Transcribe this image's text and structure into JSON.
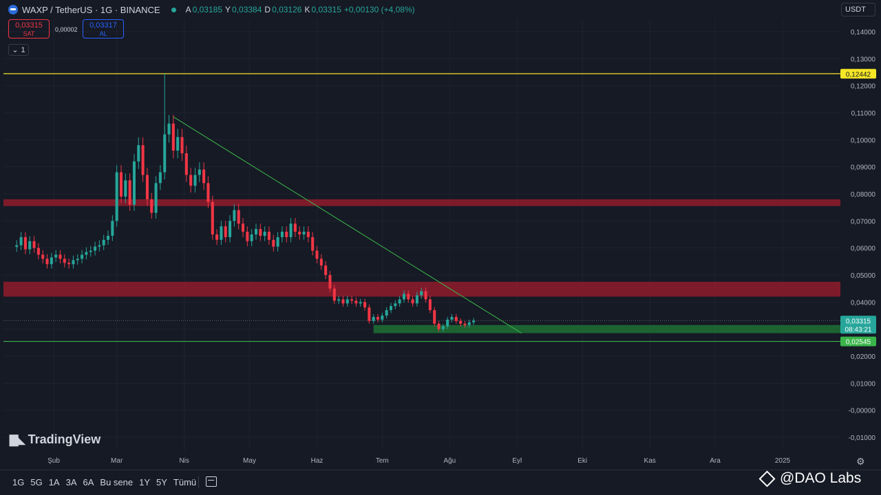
{
  "header": {
    "title": "WAXP / TetherUS · 1G · BINANCE",
    "ohlc": [
      {
        "k": "A",
        "v": "0,03185"
      },
      {
        "k": "Y",
        "v": "0,03384"
      },
      {
        "k": "D",
        "v": "0,03126"
      },
      {
        "k": "K",
        "v": "0,03315"
      },
      {
        "k": "",
        "v": "+0,00130 (+4,08%)"
      }
    ],
    "collapse_label": "1"
  },
  "trade": {
    "sell_price": "0,03315",
    "sell_label": "SAT",
    "spread": "0,00002",
    "buy_price": "0,03317",
    "buy_label": "AL"
  },
  "currency": "USDT",
  "logo": "TradingView",
  "watermark": "@DAO Labs",
  "ranges": [
    "1G",
    "5G",
    "1A",
    "3A",
    "6A",
    "Bu sene",
    "1Y",
    "5Y",
    "Tümü"
  ],
  "chart_data": {
    "type": "candlestick",
    "y_labels": [
      "0,14000",
      "0,13000",
      "0,12000",
      "0,11000",
      "0,10000",
      "0,09000",
      "0,08000",
      "0,07000",
      "0,06000",
      "0,05000",
      "0,04000",
      "0,03000",
      "0,02000",
      "0,01000",
      "-0,00000",
      "-0,01000"
    ],
    "ylim": [
      -0.01,
      0.14
    ],
    "x_labels": [
      "Şub",
      "Mar",
      "Nis",
      "May",
      "Haz",
      "Tem",
      "Ağu",
      "Eyl",
      "Eki",
      "Kas",
      "Ara",
      "2025"
    ],
    "price_tags": [
      {
        "value": 0.12442,
        "label": "0,12442",
        "color": "#f5e626"
      },
      {
        "value": 0.03315,
        "label": "0,03315",
        "sublabel": "08:43:21",
        "color": "#26a69a"
      },
      {
        "value": 0.02545,
        "label": "0,02545",
        "color": "#3ab54a"
      }
    ],
    "horizontal_lines": [
      {
        "value": 0.12442,
        "color": "#f5e626"
      },
      {
        "value": 0.02545,
        "color": "#3ab54a"
      }
    ],
    "zones": [
      {
        "low": 0.0755,
        "high": 0.078,
        "color": "#8a1c2c"
      },
      {
        "low": 0.042,
        "high": 0.0475,
        "color": "#8a1c2c"
      },
      {
        "low": 0.0285,
        "high": 0.0315,
        "color": "#1e6b34"
      }
    ],
    "trendline": [
      {
        "date": "2024-03-27",
        "value": 0.1085
      },
      {
        "date": "2024-09-03",
        "value": 0.0285
      }
    ],
    "colors": {
      "up": "#26a69a",
      "down": "#f23645"
    },
    "candles": [
      {
        "date": "2024-01-15",
        "close": 0.061
      },
      {
        "date": "2024-01-17",
        "close": 0.064
      },
      {
        "date": "2024-01-19",
        "close": 0.0595
      },
      {
        "date": "2024-01-21",
        "close": 0.0625
      },
      {
        "date": "2024-01-23",
        "close": 0.06
      },
      {
        "date": "2024-01-25",
        "close": 0.0575
      },
      {
        "date": "2024-01-27",
        "close": 0.056
      },
      {
        "date": "2024-01-29",
        "close": 0.054
      },
      {
        "date": "2024-01-31",
        "close": 0.0565
      },
      {
        "date": "2024-02-02",
        "close": 0.0575
      },
      {
        "date": "2024-02-04",
        "close": 0.056
      },
      {
        "date": "2024-02-06",
        "close": 0.0545
      },
      {
        "date": "2024-02-08",
        "close": 0.054
      },
      {
        "date": "2024-02-10",
        "close": 0.0555
      },
      {
        "date": "2024-02-12",
        "close": 0.056
      },
      {
        "date": "2024-02-14",
        "close": 0.0575
      },
      {
        "date": "2024-02-16",
        "close": 0.0585
      },
      {
        "date": "2024-02-18",
        "close": 0.059
      },
      {
        "date": "2024-02-20",
        "close": 0.0605
      },
      {
        "date": "2024-02-22",
        "close": 0.061
      },
      {
        "date": "2024-02-24",
        "close": 0.063
      },
      {
        "date": "2024-02-26",
        "close": 0.0645
      },
      {
        "date": "2024-02-28",
        "close": 0.07
      },
      {
        "date": "2024-03-01",
        "close": 0.088
      },
      {
        "date": "2024-03-03",
        "close": 0.079
      },
      {
        "date": "2024-03-05",
        "close": 0.085
      },
      {
        "date": "2024-03-07",
        "close": 0.076
      },
      {
        "date": "2024-03-09",
        "close": 0.092
      },
      {
        "date": "2024-03-11",
        "close": 0.098
      },
      {
        "date": "2024-03-13",
        "close": 0.087
      },
      {
        "date": "2024-03-15",
        "close": 0.078
      },
      {
        "date": "2024-03-17",
        "close": 0.073
      },
      {
        "date": "2024-03-19",
        "close": 0.084
      },
      {
        "date": "2024-03-21",
        "close": 0.088
      },
      {
        "date": "2024-03-23",
        "close": 0.102
      },
      {
        "date": "2024-03-25",
        "close": 0.106
      },
      {
        "date": "2024-03-27",
        "close": 0.096
      },
      {
        "date": "2024-03-29",
        "close": 0.101
      },
      {
        "date": "2024-03-31",
        "close": 0.095
      },
      {
        "date": "2024-04-02",
        "close": 0.087
      },
      {
        "date": "2024-04-04",
        "close": 0.083
      },
      {
        "date": "2024-04-06",
        "close": 0.087
      },
      {
        "date": "2024-04-08",
        "close": 0.089
      },
      {
        "date": "2024-04-10",
        "close": 0.084
      },
      {
        "date": "2024-04-12",
        "close": 0.077
      },
      {
        "date": "2024-04-14",
        "close": 0.065
      },
      {
        "date": "2024-04-16",
        "close": 0.063
      },
      {
        "date": "2024-04-18",
        "close": 0.068
      },
      {
        "date": "2024-04-20",
        "close": 0.064
      },
      {
        "date": "2024-04-22",
        "close": 0.07
      },
      {
        "date": "2024-04-24",
        "close": 0.074
      },
      {
        "date": "2024-04-26",
        "close": 0.069
      },
      {
        "date": "2024-04-28",
        "close": 0.066
      },
      {
        "date": "2024-04-30",
        "close": 0.0625
      },
      {
        "date": "2024-05-02",
        "close": 0.065
      },
      {
        "date": "2024-05-04",
        "close": 0.067
      },
      {
        "date": "2024-05-06",
        "close": 0.0645
      },
      {
        "date": "2024-05-08",
        "close": 0.066
      },
      {
        "date": "2024-05-10",
        "close": 0.063
      },
      {
        "date": "2024-05-12",
        "close": 0.0605
      },
      {
        "date": "2024-05-14",
        "close": 0.064
      },
      {
        "date": "2024-05-16",
        "close": 0.066
      },
      {
        "date": "2024-05-18",
        "close": 0.064
      },
      {
        "date": "2024-05-20",
        "close": 0.069
      },
      {
        "date": "2024-05-22",
        "close": 0.066
      },
      {
        "date": "2024-05-24",
        "close": 0.065
      },
      {
        "date": "2024-05-26",
        "close": 0.066
      },
      {
        "date": "2024-05-28",
        "close": 0.064
      },
      {
        "date": "2024-05-30",
        "close": 0.059
      },
      {
        "date": "2024-06-01",
        "close": 0.056
      },
      {
        "date": "2024-06-03",
        "close": 0.0535
      },
      {
        "date": "2024-06-05",
        "close": 0.05
      },
      {
        "date": "2024-06-07",
        "close": 0.045
      },
      {
        "date": "2024-06-09",
        "close": 0.0405
      },
      {
        "date": "2024-06-11",
        "close": 0.041
      },
      {
        "date": "2024-06-13",
        "close": 0.0395
      },
      {
        "date": "2024-06-15",
        "close": 0.041
      },
      {
        "date": "2024-06-17",
        "close": 0.0405
      },
      {
        "date": "2024-06-19",
        "close": 0.0395
      },
      {
        "date": "2024-06-21",
        "close": 0.04
      },
      {
        "date": "2024-06-23",
        "close": 0.038
      },
      {
        "date": "2024-06-25",
        "close": 0.033
      },
      {
        "date": "2024-06-27",
        "close": 0.0345
      },
      {
        "date": "2024-06-29",
        "close": 0.0335
      },
      {
        "date": "2024-07-01",
        "close": 0.035
      },
      {
        "date": "2024-07-03",
        "close": 0.037
      },
      {
        "date": "2024-07-05",
        "close": 0.0385
      },
      {
        "date": "2024-07-07",
        "close": 0.0395
      },
      {
        "date": "2024-07-09",
        "close": 0.041
      },
      {
        "date": "2024-07-11",
        "close": 0.043
      },
      {
        "date": "2024-07-13",
        "close": 0.041
      },
      {
        "date": "2024-07-15",
        "close": 0.0395
      },
      {
        "date": "2024-07-17",
        "close": 0.0425
      },
      {
        "date": "2024-07-19",
        "close": 0.044
      },
      {
        "date": "2024-07-21",
        "close": 0.041
      },
      {
        "date": "2024-07-23",
        "close": 0.037
      },
      {
        "date": "2024-07-25",
        "close": 0.032
      },
      {
        "date": "2024-07-27",
        "close": 0.03
      },
      {
        "date": "2024-07-29",
        "close": 0.031
      },
      {
        "date": "2024-07-31",
        "close": 0.0335
      },
      {
        "date": "2024-08-02",
        "close": 0.0345
      },
      {
        "date": "2024-08-04",
        "close": 0.033
      },
      {
        "date": "2024-08-06",
        "close": 0.032
      },
      {
        "date": "2024-08-08",
        "close": 0.0315
      },
      {
        "date": "2024-08-10",
        "close": 0.0325
      },
      {
        "date": "2024-08-12",
        "close": 0.0331
      }
    ]
  }
}
